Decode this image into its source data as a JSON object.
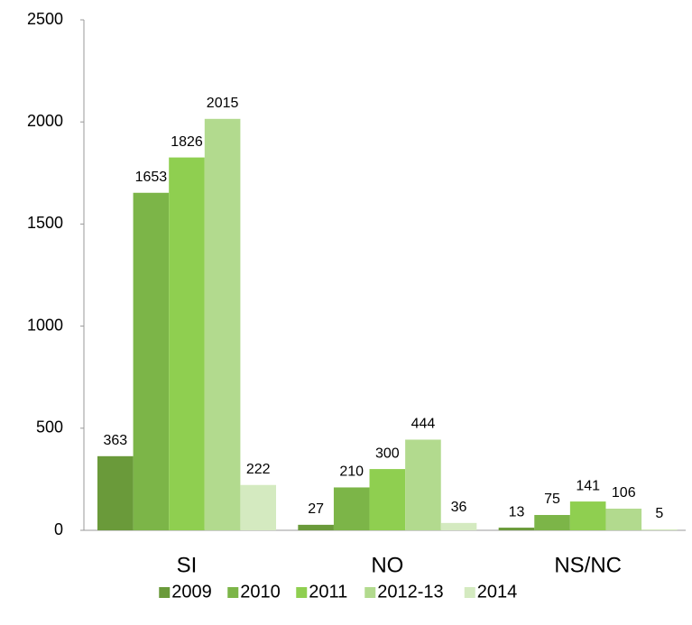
{
  "chart_data": {
    "type": "bar",
    "categories": [
      "SI",
      "NO",
      "NS/NC"
    ],
    "series": [
      {
        "name": "2009",
        "color": "#6a9a3a",
        "values": [
          363,
          27,
          13
        ]
      },
      {
        "name": "2010",
        "color": "#7cb548",
        "values": [
          1653,
          210,
          75
        ]
      },
      {
        "name": "2011",
        "color": "#8fcf50",
        "values": [
          1826,
          300,
          141
        ]
      },
      {
        "name": "2012-13",
        "color": "#b2da8e",
        "values": [
          2015,
          444,
          106
        ]
      },
      {
        "name": "2014",
        "color": "#d4eac0",
        "values": [
          222,
          36,
          5
        ]
      }
    ],
    "ylim": [
      0,
      2500
    ],
    "yticks": [
      0,
      500,
      1000,
      1500,
      2000,
      2500
    ],
    "grid": false,
    "legend": "bottom"
  }
}
